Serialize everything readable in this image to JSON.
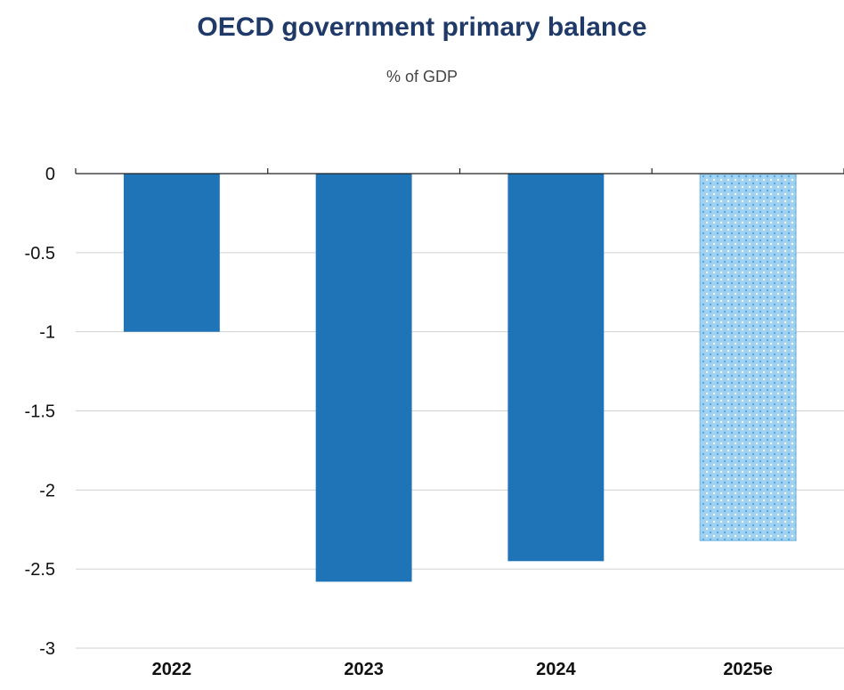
{
  "chart_data": {
    "type": "bar",
    "title": "OECD government primary balance",
    "subtitle": "% of GDP",
    "xlabel": "",
    "ylabel": "",
    "categories": [
      "2022",
      "2023",
      "2024",
      "2025e"
    ],
    "values": [
      -1.0,
      -2.58,
      -2.45,
      -2.32
    ],
    "ylim": [
      -3,
      0
    ],
    "yticks": [
      0,
      -0.5,
      -1,
      -1.5,
      -2,
      -2.5,
      -3
    ],
    "ytick_labels": [
      "0",
      "-0.5",
      "-1",
      "-1.5",
      "-2",
      "-2.5",
      "-3"
    ],
    "grid": true,
    "legend": "none",
    "bar_color": "#1f73b7",
    "estimate_bar_color": "#9fd1f2",
    "estimate_pattern": true
  }
}
